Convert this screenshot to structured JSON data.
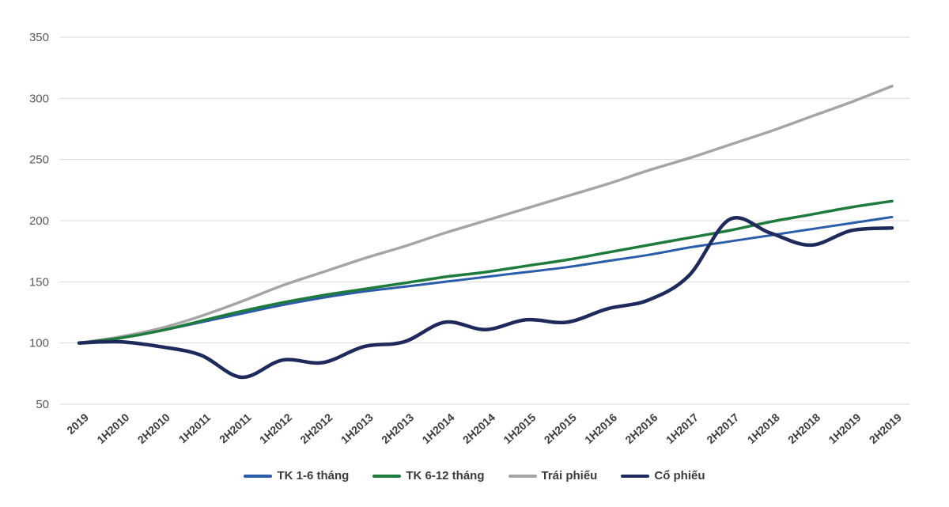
{
  "chart_data": {
    "type": "line",
    "title": "",
    "xlabel": "",
    "ylabel": "",
    "categories": [
      "2019",
      "1H2010",
      "2H2010",
      "1H2011",
      "2H2011",
      "1H2012",
      "2H2012",
      "1H2013",
      "2H2013",
      "1H2014",
      "2H2014",
      "1H2015",
      "2H2015",
      "1H2016",
      "2H2016",
      "1H2017",
      "2H2017",
      "1H2018",
      "2H2018",
      "1H2019",
      "2H2019"
    ],
    "series": [
      {
        "name": "TK 1-6 tháng",
        "color": "#2a5caa",
        "stroke_width": 3,
        "values": [
          100,
          104,
          110,
          117,
          124,
          131,
          137,
          142,
          146,
          150,
          154,
          158,
          162,
          167,
          172,
          178,
          183,
          188,
          193,
          198,
          203
        ]
      },
      {
        "name": "TK 6-12 tháng",
        "color": "#1e7b3c",
        "stroke_width": 3.5,
        "values": [
          100,
          104,
          110,
          118,
          126,
          133,
          139,
          144,
          149,
          154,
          158,
          163,
          168,
          174,
          180,
          186,
          192,
          199,
          205,
          211,
          216
        ]
      },
      {
        "name": "Trái phiếu",
        "color": "#a5a5a5",
        "stroke_width": 3.5,
        "values": [
          100,
          105,
          112,
          122,
          134,
          147,
          158,
          169,
          179,
          190,
          200,
          210,
          220,
          230,
          241,
          251,
          262,
          273,
          285,
          297,
          310
        ]
      },
      {
        "name": "Cổ phiếu",
        "color": "#1f2a5c",
        "stroke_width": 4.5,
        "values": [
          100,
          101,
          97,
          90,
          72,
          86,
          84,
          97,
          101,
          117,
          111,
          119,
          117,
          128,
          135,
          155,
          201,
          190,
          180,
          192,
          194
        ]
      }
    ],
    "y_ticks": [
      50,
      100,
      150,
      200,
      250,
      300,
      350
    ],
    "ylim": [
      50,
      350
    ],
    "grid": true,
    "legend_position": "bottom",
    "smoothed_lines": true
  },
  "style": {
    "background": "#ffffff",
    "gridline_color": "#d9d9d9",
    "y_label_color": "#595959",
    "x_label_color": "#3d3d3d"
  }
}
